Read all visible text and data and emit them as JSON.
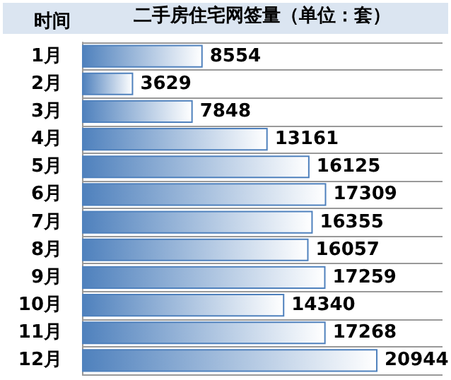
{
  "chart_data": {
    "type": "bar",
    "orientation": "horizontal",
    "ylabel": "时间",
    "xlabel": "二手房住宅网签量（单位：套）",
    "categories": [
      "1月",
      "2月",
      "3月",
      "4月",
      "5月",
      "6月",
      "7月",
      "8月",
      "9月",
      "10月",
      "11月",
      "12月"
    ],
    "values": [
      8554,
      3629,
      7848,
      13161,
      16125,
      17309,
      16355,
      16057,
      17259,
      14340,
      17268,
      20944
    ],
    "color": "#4f81bd",
    "data_labels": true,
    "grid": "y"
  }
}
